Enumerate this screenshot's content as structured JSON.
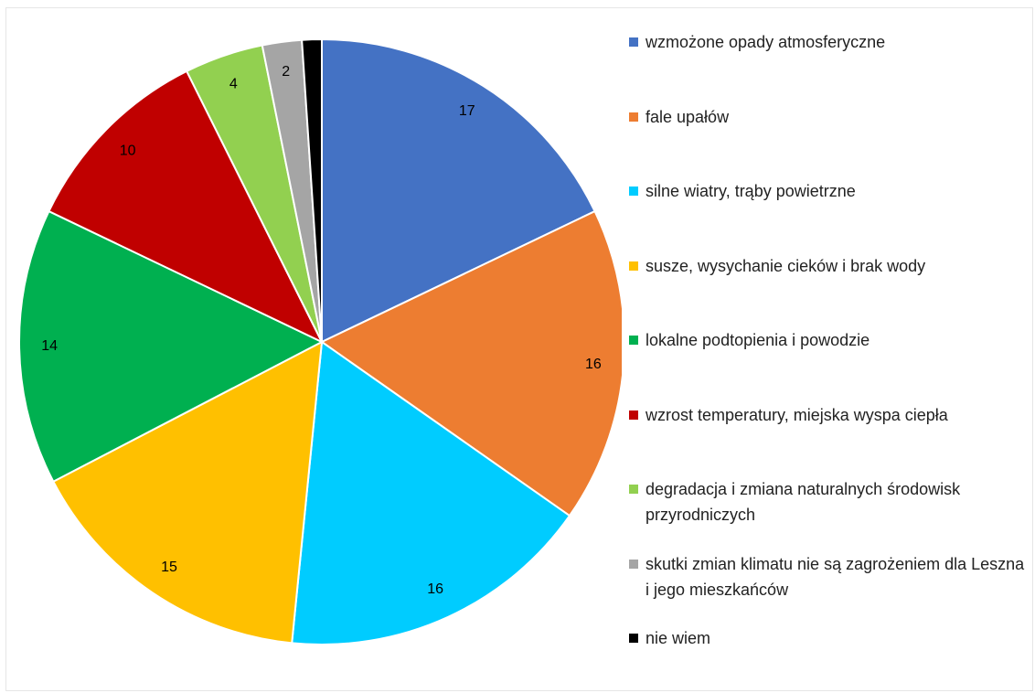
{
  "chart_data": {
    "type": "pie",
    "categories": [
      "wzmożone opady atmosferyczne",
      "fale upałów",
      "silne wiatry, trąby powietrzne",
      "susze, wysychanie cieków i brak wody",
      "lokalne podtopienia i powodzie",
      "wzrost temperatury, miejska wyspa ciepła",
      "degradacja i zmiana naturalnych środowisk przyrodniczych",
      "skutki zmian klimatu nie są zagrożeniem dla Leszna i jego mieszkańców",
      "nie wiem"
    ],
    "values": [
      17,
      16,
      16,
      15,
      14,
      10,
      4,
      2,
      1
    ],
    "value_labels": [
      "17",
      "16",
      "16",
      "15",
      "14",
      "10",
      "4",
      "2",
      null
    ],
    "colors": [
      "#4472c4",
      "#ed7d31",
      "#00ccff",
      "#ffc000",
      "#00b050",
      "#c00000",
      "#92d050",
      "#a5a5a5",
      "#000000"
    ],
    "legend": "right"
  }
}
